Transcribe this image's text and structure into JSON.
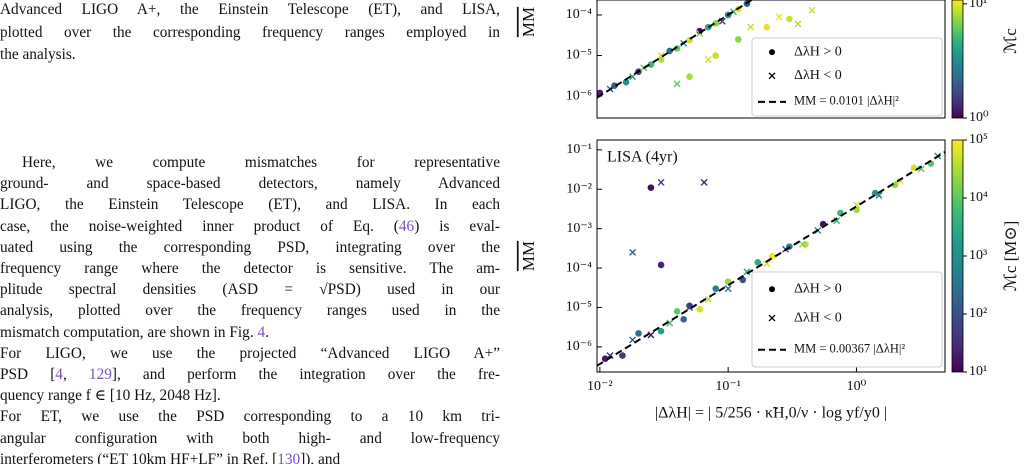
{
  "document": {
    "caption_lines": [
      "Advanced LIGO A+, the Einstein Telescope (ET), and LISA,",
      "plotted over the corresponding frequency ranges employed in",
      "the analysis."
    ],
    "paragraphs": [
      [
        [
          {
            "t": "Here, we compute mismatches for representative"
          }
        ],
        [
          {
            "t": "ground- and space-based detectors, namely Advanced"
          }
        ],
        [
          {
            "t": "LIGO, the Einstein Telescope (ET), and LISA. In each"
          }
        ],
        [
          {
            "t": "case, the noise-weighted inner product of Eq. ("
          },
          {
            "t": "46",
            "ref": true
          },
          {
            "t": ") is eval-"
          }
        ],
        [
          {
            "t": "uated using the corresponding PSD, integrating over the"
          }
        ],
        [
          {
            "t": "frequency range where the detector is sensitive. The am-"
          }
        ],
        [
          {
            "t": "plitude spectral densities (ASD = √PSD) used in our"
          }
        ],
        [
          {
            "t": "analysis, plotted over the frequency ranges used in the"
          }
        ],
        [
          {
            "t": "mismatch computation, are shown in Fig. "
          },
          {
            "t": "4",
            "ref": true
          },
          {
            "t": "."
          }
        ]
      ],
      [
        [
          {
            "t": "For LIGO, we use the projected “Advanced LIGO A+”"
          }
        ],
        [
          {
            "t": "PSD ["
          },
          {
            "t": "4",
            "ref": true
          },
          {
            "t": ", "
          },
          {
            "t": "129",
            "ref": true
          },
          {
            "t": "], and perform the integration over the fre-"
          }
        ],
        [
          {
            "t": "quency range f ∈ [10 Hz, 2048 Hz]."
          }
        ]
      ],
      [
        [
          {
            "t": "For ET, we use the PSD corresponding to a 10 km tri-"
          }
        ],
        [
          {
            "t": "angular configuration with both high- and low-frequency"
          }
        ],
        [
          {
            "t": "interferometers (“ET 10km HF+LF” in Ref. ["
          },
          {
            "t": "130",
            "ref": true
          },
          {
            "t": "]), and"
          }
        ]
      ]
    ]
  },
  "chart_data": [
    {
      "type": "scatter",
      "ylabel": "MM",
      "log_x": true,
      "log_y": true,
      "xlim": [
        0.0095,
        4.9
      ],
      "ylim": [
        0.000234,
        2.88e-07
      ],
      "yticks": [
        {
          "value": 0.0001,
          "label": "10⁻⁴"
        },
        {
          "value": 1e-05,
          "label": "10⁻⁵"
        },
        {
          "value": 1e-06,
          "label": "10⁻⁶"
        }
      ],
      "legend": "lower right",
      "series": [
        {
          "name": "ΔλH > 0",
          "marker": "circle",
          "x": [
            0.01,
            0.013,
            0.016,
            0.02,
            0.025,
            0.03,
            0.035,
            0.04,
            0.05,
            0.06,
            0.07,
            0.08,
            0.1,
            0.12,
            0.14,
            0.05,
            0.08,
            0.12,
            0.2,
            0.3
          ],
          "values": [
            1.2e-06,
            1.8e-06,
            2.2e-06,
            4e-06,
            6e-06,
            8e-06,
            1.3e-05,
            1.5e-05,
            2.4e-05,
            4e-05,
            5e-05,
            6.2e-05,
            0.0001,
            0.00014,
            0.00019,
            3e-06,
            1e-05,
            2.5e-05,
            5e-05,
            8e-05
          ],
          "mass": [
            1.2,
            2,
            3.5,
            1.5,
            5,
            8,
            2.5,
            6,
            9,
            1.1,
            4,
            7,
            3,
            9.5,
            2,
            8,
            9,
            7,
            10,
            9
          ]
        },
        {
          "name": "ΔλH < 0",
          "marker": "x",
          "x": [
            0.012,
            0.018,
            0.022,
            0.03,
            0.045,
            0.06,
            0.09,
            0.11,
            0.15,
            0.25,
            0.35,
            0.45,
            0.04,
            0.07
          ],
          "values": [
            1.5e-06,
            3e-06,
            5e-06,
            1e-05,
            2e-05,
            3.5e-05,
            7e-05,
            0.00012,
            5e-05,
            9e-05,
            6e-05,
            0.00013,
            2e-06,
            8e-06
          ],
          "mass": [
            2,
            4,
            6,
            9,
            3,
            7,
            1.5,
            5,
            9,
            10,
            8,
            9,
            6,
            9
          ]
        }
      ],
      "fit": {
        "label": "MM = 0.0101 |ΔλH|²",
        "coefficient": 0.0101,
        "exponent": 2,
        "color": "#000000"
      },
      "colorbar": {
        "label": "ℳc",
        "clim": [
          1,
          10.8
        ],
        "ticks": [
          {
            "value": 1,
            "label": "10⁰"
          },
          {
            "value": 10,
            "label": "10¹"
          }
        ]
      }
    },
    {
      "type": "scatter",
      "ylabel": "MM",
      "annotation": "LISA (4yr)",
      "log_x": true,
      "log_y": true,
      "xlabel": "|ΔλH| = | 5/256 · κ̃H,0/ν · log yf/y0 |",
      "xlim": [
        0.0095,
        4.9
      ],
      "ylim": [
        0.178,
        2.3e-07
      ],
      "xticks": [
        {
          "value": 0.01,
          "label": "10⁻²"
        },
        {
          "value": 0.1,
          "label": "10⁻¹"
        },
        {
          "value": 1,
          "label": "10⁰"
        }
      ],
      "yticks": [
        {
          "value": 0.1,
          "label": "10⁻¹"
        },
        {
          "value": 0.01,
          "label": "10⁻²"
        },
        {
          "value": 0.001,
          "label": "10⁻³"
        },
        {
          "value": 0.0001,
          "label": "10⁻⁴"
        },
        {
          "value": 1e-05,
          "label": "10⁻⁵"
        },
        {
          "value": 1e-06,
          "label": "10⁻⁶"
        }
      ],
      "legend": "lower right",
      "series": [
        {
          "name": "ΔλH > 0",
          "marker": "circle",
          "x": [
            0.011,
            0.015,
            0.02,
            0.025,
            0.03,
            0.04,
            0.05,
            0.06,
            0.08,
            0.1,
            0.13,
            0.17,
            0.22,
            0.3,
            0.4,
            0.55,
            0.75,
            1.0,
            1.4,
            2.0,
            2.8,
            3.8,
            0.03,
            0.045
          ],
          "values": [
            5e-07,
            6e-07,
            2.2e-06,
            0.011,
            2.5e-06,
            8e-06,
            1.1e-05,
            9e-06,
            3e-05,
            4.5e-05,
            5e-05,
            0.00014,
            0.0002,
            0.00035,
            0.0004,
            0.0013,
            0.0025,
            0.003,
            0.008,
            0.013,
            0.035,
            0.045,
            0.00012,
            5e-06
          ],
          "mass": [
            20,
            50,
            300,
            15,
            2000,
            10000,
            40,
            60000,
            500,
            25000,
            100,
            3000,
            80000,
            700,
            40000,
            15,
            5000,
            30000,
            1500,
            20000,
            60000,
            9000,
            25,
            200
          ]
        },
        {
          "name": "ΔλH < 0",
          "marker": "x",
          "x": [
            0.012,
            0.018,
            0.025,
            0.035,
            0.05,
            0.07,
            0.1,
            0.14,
            0.2,
            0.28,
            0.38,
            0.5,
            0.7,
            1.0,
            1.5,
            2.2,
            3.2,
            4.3,
            0.03,
            0.065,
            0.018
          ],
          "values": [
            6e-07,
            1.5e-06,
            2e-06,
            4e-06,
            1e-05,
            1.6e-05,
            3e-05,
            8e-05,
            0.00013,
            0.0003,
            0.0004,
            0.0009,
            0.0016,
            0.004,
            0.007,
            0.016,
            0.033,
            0.07,
            0.015,
            0.015,
            0.00025
          ],
          "mass": [
            30,
            200,
            15,
            5000,
            80,
            40000,
            300,
            2000,
            60000,
            100,
            20000,
            800,
            3000,
            50000,
            400,
            70000,
            9000,
            1000,
            50,
            30,
            200
          ]
        }
      ],
      "fit": {
        "label": "MM = 0.00367 |ΔλH|²",
        "coefficient": 0.00367,
        "exponent": 2,
        "color": "#000000"
      },
      "colorbar": {
        "label": "ℳc [M⊙]",
        "clim": [
          10,
          100000
        ],
        "ticks": [
          {
            "value": 10,
            "label": "10¹"
          },
          {
            "value": 100,
            "label": "10²"
          },
          {
            "value": 1000,
            "label": "10³"
          },
          {
            "value": 10000,
            "label": "10⁴"
          },
          {
            "value": 100000,
            "label": "10⁵"
          }
        ]
      }
    }
  ]
}
